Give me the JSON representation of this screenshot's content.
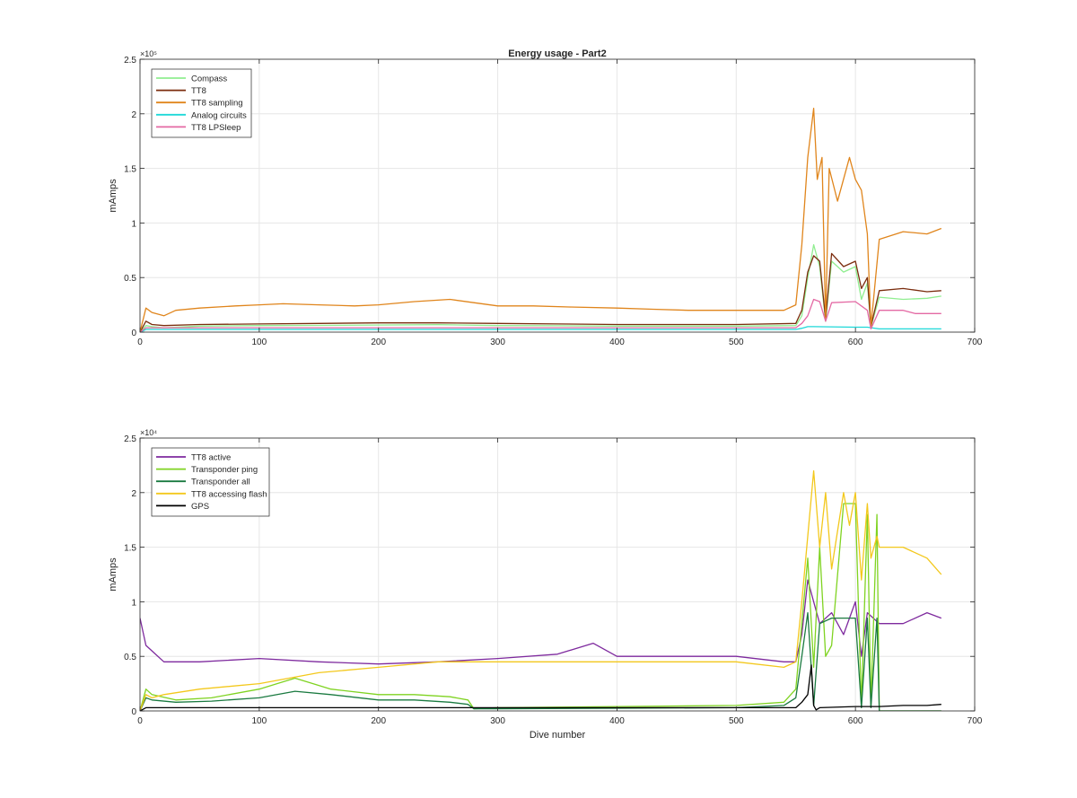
{
  "figure": {
    "title": "Energy usage - Part2"
  },
  "chart_data": [
    {
      "type": "line",
      "title": "Energy usage - Part2",
      "xlabel": "",
      "ylabel": "mAmps",
      "y_exponent_label": "×10⁵",
      "xlim": [
        0,
        700
      ],
      "ylim": [
        0,
        250000
      ],
      "xticks": [
        0,
        100,
        200,
        300,
        400,
        500,
        600,
        700
      ],
      "xtick_labels": [
        "0",
        "100",
        "200",
        "300",
        "400",
        "500",
        "600",
        "700"
      ],
      "yticks": [
        0,
        50000,
        100000,
        150000,
        200000,
        250000
      ],
      "ytick_labels": [
        "0",
        "0.5",
        "1",
        "1.5",
        "2",
        "2.5"
      ],
      "grid": true,
      "legend_position": "top-left",
      "series": [
        {
          "name": "Compass",
          "color": "#90ee90",
          "x": [
            0,
            5,
            10,
            20,
            50,
            100,
            150,
            200,
            250,
            300,
            350,
            400,
            450,
            500,
            550,
            555,
            560,
            565,
            570,
            575,
            580,
            590,
            600,
            605,
            610,
            613,
            620,
            640,
            660,
            672
          ],
          "y": [
            0,
            6000,
            5000,
            4000,
            5500,
            6000,
            6200,
            6500,
            6800,
            6000,
            5800,
            5500,
            5500,
            5500,
            6000,
            15000,
            50000,
            80000,
            60000,
            10000,
            65000,
            55000,
            60000,
            30000,
            45000,
            5000,
            32000,
            30000,
            31000,
            33000
          ]
        },
        {
          "name": "TT8",
          "color": "#7b2d0e",
          "x": [
            0,
            5,
            10,
            20,
            50,
            100,
            150,
            200,
            250,
            300,
            350,
            400,
            450,
            500,
            550,
            555,
            560,
            565,
            570,
            575,
            580,
            590,
            600,
            605,
            610,
            613,
            620,
            640,
            660,
            672
          ],
          "y": [
            0,
            10000,
            7000,
            6000,
            7000,
            7500,
            8000,
            8500,
            8500,
            8000,
            7500,
            7000,
            7000,
            7000,
            8000,
            20000,
            55000,
            70000,
            65000,
            12000,
            72000,
            60000,
            65000,
            40000,
            50000,
            5000,
            38000,
            40000,
            37000,
            38000
          ]
        },
        {
          "name": "TT8 sampling",
          "color": "#e0851c",
          "x": [
            0,
            5,
            10,
            20,
            30,
            50,
            80,
            100,
            120,
            150,
            180,
            200,
            230,
            260,
            280,
            300,
            330,
            360,
            400,
            430,
            460,
            500,
            540,
            550,
            555,
            560,
            565,
            568,
            572,
            575,
            578,
            585,
            595,
            600,
            605,
            610,
            613,
            620,
            640,
            660,
            672
          ],
          "y": [
            0,
            22000,
            18000,
            15000,
            20000,
            22000,
            24000,
            25000,
            26000,
            25000,
            24000,
            25000,
            28000,
            30000,
            27000,
            24000,
            24000,
            23000,
            22000,
            21000,
            20000,
            20000,
            20000,
            25000,
            80000,
            160000,
            205000,
            140000,
            160000,
            10000,
            150000,
            120000,
            160000,
            140000,
            130000,
            90000,
            5000,
            85000,
            92000,
            90000,
            95000
          ]
        },
        {
          "name": "Analog circuits",
          "color": "#1ed8d8",
          "x": [
            0,
            5,
            50,
            100,
            200,
            300,
            400,
            500,
            550,
            555,
            560,
            565,
            600,
            610,
            620,
            672
          ],
          "y": [
            0,
            2500,
            2500,
            2500,
            2500,
            2500,
            2500,
            2500,
            2500,
            3500,
            5000,
            5000,
            4500,
            4500,
            3000,
            3000
          ]
        },
        {
          "name": "TT8 LPSleep",
          "color": "#e46aa4",
          "x": [
            0,
            5,
            50,
            100,
            200,
            300,
            400,
            500,
            550,
            555,
            560,
            565,
            570,
            575,
            580,
            600,
            610,
            613,
            620,
            640,
            650,
            672
          ],
          "y": [
            0,
            4000,
            4000,
            4000,
            4000,
            4000,
            4000,
            4000,
            4000,
            8000,
            15000,
            30000,
            28000,
            10000,
            27000,
            28000,
            20000,
            3000,
            20000,
            20000,
            17000,
            17000
          ]
        }
      ]
    },
    {
      "type": "line",
      "title": "",
      "xlabel": "Dive number",
      "ylabel": "mAmps",
      "y_exponent_label": "×10⁴",
      "xlim": [
        0,
        700
      ],
      "ylim": [
        0,
        25000
      ],
      "xticks": [
        0,
        100,
        200,
        300,
        400,
        500,
        600,
        700
      ],
      "xtick_labels": [
        "0",
        "100",
        "200",
        "300",
        "400",
        "500",
        "600",
        "700"
      ],
      "yticks": [
        0,
        5000,
        10000,
        15000,
        20000,
        25000
      ],
      "ytick_labels": [
        "0",
        "0.5",
        "1",
        "1.5",
        "2",
        "2.5"
      ],
      "grid": true,
      "legend_position": "top-left",
      "series": [
        {
          "name": "TT8 active",
          "color": "#7e2a9e",
          "x": [
            0,
            5,
            10,
            20,
            50,
            100,
            150,
            200,
            250,
            300,
            350,
            380,
            400,
            450,
            500,
            540,
            550,
            555,
            560,
            565,
            570,
            580,
            590,
            600,
            605,
            610,
            620,
            640,
            660,
            672
          ],
          "y": [
            8500,
            6000,
            5500,
            4500,
            4500,
            4800,
            4500,
            4300,
            4500,
            4800,
            5200,
            6200,
            5000,
            5000,
            5000,
            4500,
            4500,
            7000,
            12000,
            10000,
            8000,
            9000,
            7000,
            10000,
            5000,
            9000,
            8000,
            8000,
            9000,
            8500
          ]
        },
        {
          "name": "Transponder ping",
          "color": "#7fd321",
          "x": [
            0,
            5,
            10,
            30,
            60,
            100,
            130,
            160,
            200,
            230,
            260,
            275,
            280,
            300,
            400,
            500,
            540,
            550,
            555,
            560,
            565,
            570,
            575,
            580,
            590,
            600,
            605,
            610,
            613,
            618,
            620,
            672
          ],
          "y": [
            0,
            2000,
            1500,
            1000,
            1200,
            2000,
            3000,
            2000,
            1500,
            1500,
            1300,
            1000,
            200,
            300,
            400,
            500,
            800,
            2000,
            8000,
            14000,
            4000,
            15000,
            5000,
            6000,
            19000,
            19000,
            500,
            18000,
            500,
            18000,
            0,
            0
          ]
        },
        {
          "name": "Transponder all",
          "color": "#1a7a40",
          "x": [
            0,
            5,
            10,
            30,
            60,
            100,
            130,
            160,
            200,
            230,
            260,
            275,
            280,
            300,
            400,
            500,
            540,
            550,
            555,
            560,
            565,
            570,
            580,
            590,
            600,
            605,
            610,
            613,
            618,
            620,
            672
          ],
          "y": [
            0,
            1200,
            1000,
            800,
            900,
            1200,
            1800,
            1500,
            1000,
            1000,
            800,
            600,
            200,
            200,
            250,
            300,
            500,
            1200,
            5000,
            9000,
            500,
            8000,
            8500,
            8500,
            8500,
            300,
            8500,
            300,
            8500,
            0,
            0
          ]
        },
        {
          "name": "TT8 accessing flash",
          "color": "#f3c81c",
          "x": [
            0,
            5,
            10,
            20,
            50,
            100,
            150,
            200,
            250,
            300,
            350,
            400,
            450,
            500,
            540,
            550,
            555,
            560,
            565,
            570,
            575,
            580,
            590,
            595,
            600,
            605,
            610,
            613,
            618,
            620,
            640,
            660,
            672
          ],
          "y": [
            0,
            1500,
            1200,
            1500,
            2000,
            2500,
            3500,
            4000,
            4500,
            4500,
            4500,
            4500,
            4500,
            4500,
            4000,
            4500,
            10000,
            16000,
            22000,
            15000,
            20000,
            13000,
            20000,
            17000,
            20000,
            12000,
            19000,
            14000,
            16000,
            15000,
            15000,
            14000,
            12500
          ]
        },
        {
          "name": "GPS",
          "color": "#000000",
          "x": [
            0,
            5,
            50,
            100,
            200,
            300,
            400,
            500,
            550,
            555,
            560,
            563,
            565,
            567,
            570,
            600,
            610,
            620,
            640,
            660,
            672
          ],
          "y": [
            0,
            300,
            300,
            300,
            300,
            300,
            300,
            300,
            300,
            800,
            1500,
            4200,
            500,
            100,
            300,
            400,
            400,
            400,
            500,
            500,
            600
          ]
        }
      ]
    }
  ]
}
